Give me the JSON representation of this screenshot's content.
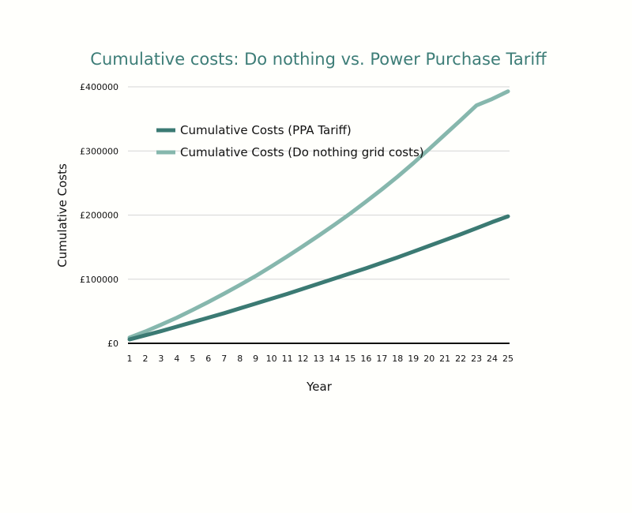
{
  "chart_data": {
    "type": "line",
    "title": "Cumulative costs: Do nothing vs. Power Purchase Tariff",
    "xlabel": "Year",
    "ylabel": "Cumulative Costs",
    "x": [
      1,
      2,
      3,
      4,
      5,
      6,
      7,
      8,
      9,
      10,
      11,
      12,
      13,
      14,
      15,
      16,
      17,
      18,
      19,
      20,
      21,
      22,
      23,
      24,
      25
    ],
    "ylim": [
      0,
      400000
    ],
    "y_ticks": [
      0,
      100000,
      200000,
      300000,
      400000
    ],
    "y_tick_labels": [
      "£0",
      "£100000",
      "£200000",
      "£300000",
      "£400000"
    ],
    "grid": true,
    "legend_position": "top-left",
    "series": [
      {
        "name": "Cumulative Costs (PPA Tariff)",
        "color": "#3b7a73",
        "values": [
          6000,
          12500,
          19000,
          26000,
          33000,
          40000,
          47000,
          54500,
          62000,
          69500,
          77000,
          85000,
          93000,
          101000,
          109000,
          117000,
          125500,
          134000,
          143000,
          152000,
          161000,
          170000,
          179500,
          189000,
          198000
        ]
      },
      {
        "name": "Cumulative Costs (Do nothing grid costs)",
        "color": "#86b7ad",
        "values": [
          9000,
          18500,
          29000,
          40000,
          52000,
          64500,
          77500,
          91000,
          105000,
          120000,
          135500,
          151500,
          168000,
          185000,
          202500,
          221000,
          240000,
          260000,
          281000,
          303000,
          325500,
          348000,
          371000,
          381000,
          393000
        ]
      }
    ]
  }
}
